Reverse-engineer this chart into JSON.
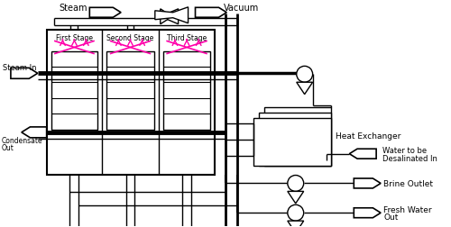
{
  "bg_color": "#ffffff",
  "line_color": "#000000",
  "pink_color": "#ff00aa",
  "stage_labels": [
    "First Stage",
    "Second Stage",
    "Third Stage"
  ],
  "right_labels": [
    "Heat Exchanger",
    "Water to be\nDesalinated In",
    "Brine Outlet",
    "Fresh Water\nOut"
  ]
}
